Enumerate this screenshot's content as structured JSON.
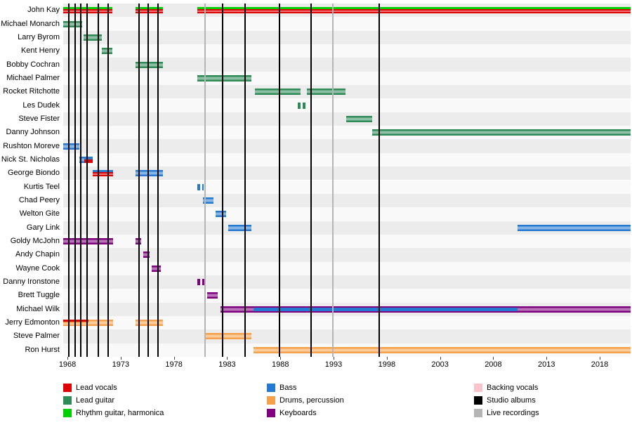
{
  "colors": {
    "lead_vocals": "#e00000",
    "lead_guitar": "#2e8b57",
    "rhythm_guitar": "#00cf00",
    "bass": "#2479d0",
    "drums": "#f5a14a",
    "keyboards": "#800080",
    "backing_vocals": "#f9c4cc",
    "studio_albums": "#000000",
    "live_recordings": "#b5b5b5",
    "row_band_dark": "#ececec",
    "row_band_light": "#f9f9f9"
  },
  "legend": {
    "items": [
      {
        "label": "Lead vocals",
        "color_key": "lead_vocals"
      },
      {
        "label": "Lead guitar",
        "color_key": "lead_guitar"
      },
      {
        "label": "Rhythm guitar, harmonica",
        "color_key": "rhythm_guitar"
      },
      {
        "label": "Bass",
        "color_key": "bass"
      },
      {
        "label": "Drums, percussion",
        "color_key": "drums"
      },
      {
        "label": "Keyboards",
        "color_key": "keyboards"
      },
      {
        "label": "Backing vocals",
        "color_key": "backing_vocals"
      },
      {
        "label": "Studio albums",
        "color_key": "studio_albums"
      },
      {
        "label": "Live recordings",
        "color_key": "live_recordings"
      }
    ]
  },
  "chart_data": {
    "type": "timeline",
    "x_axis": {
      "min": 1967.6,
      "max": 2020.9,
      "ticks": [
        1968,
        1973,
        1978,
        1983,
        1988,
        1993,
        1998,
        2003,
        2008,
        2013,
        2018
      ]
    },
    "rows": [
      {
        "name": "John Kay",
        "segments": [
          {
            "start": 1967.6,
            "end": 1972.2,
            "roles": [
              "rhythm_guitar",
              "lead_vocals",
              "lead_vocals"
            ]
          },
          {
            "start": 1974.4,
            "end": 1977.0,
            "roles": [
              "rhythm_guitar",
              "lead_vocals",
              "lead_vocals"
            ]
          },
          {
            "start": 1980.2,
            "end": 2020.9,
            "roles": [
              "rhythm_guitar",
              "lead_vocals",
              "lead_vocals"
            ]
          }
        ]
      },
      {
        "name": "Michael Monarch",
        "segments": [
          {
            "start": 1967.6,
            "end": 1969.4,
            "roles": [
              "lead_guitar"
            ]
          }
        ]
      },
      {
        "name": "Larry Byrom",
        "segments": [
          {
            "start": 1969.5,
            "end": 1971.2,
            "roles": [
              "lead_guitar"
            ]
          }
        ]
      },
      {
        "name": "Kent Henry",
        "segments": [
          {
            "start": 1971.2,
            "end": 1972.2,
            "roles": [
              "lead_guitar"
            ]
          }
        ]
      },
      {
        "name": "Bobby Cochran",
        "segments": [
          {
            "start": 1974.4,
            "end": 1977.0,
            "roles": [
              "lead_guitar"
            ]
          }
        ]
      },
      {
        "name": "Michael Palmer",
        "segments": [
          {
            "start": 1980.2,
            "end": 1985.3,
            "roles": [
              "lead_guitar"
            ]
          }
        ]
      },
      {
        "name": "Rocket Ritchotte",
        "segments": [
          {
            "start": 1985.6,
            "end": 1989.9,
            "roles": [
              "lead_guitar"
            ]
          },
          {
            "start": 1990.5,
            "end": 1994.1,
            "roles": [
              "lead_guitar"
            ]
          }
        ]
      },
      {
        "name": "Les Dudek",
        "segments": [
          {
            "start": 1989.6,
            "end": 1990.4,
            "roles": [
              "lead_guitar"
            ],
            "dashed": true
          }
        ]
      },
      {
        "name": "Steve Fister",
        "segments": [
          {
            "start": 1994.2,
            "end": 1996.6,
            "roles": [
              "lead_guitar"
            ]
          }
        ]
      },
      {
        "name": "Danny Johnson",
        "segments": [
          {
            "start": 1996.6,
            "end": 2020.9,
            "roles": [
              "lead_guitar"
            ]
          }
        ]
      },
      {
        "name": "Rushton Moreve",
        "segments": [
          {
            "start": 1967.6,
            "end": 1969.1,
            "roles": [
              "bass"
            ]
          }
        ]
      },
      {
        "name": "Nick St. Nicholas",
        "segments": [
          {
            "start": 1969.1,
            "end": 1969.6,
            "roles": [
              "bass"
            ]
          },
          {
            "start": 1969.6,
            "end": 1970.4,
            "roles": [
              "bass",
              "lead_vocals"
            ]
          }
        ]
      },
      {
        "name": "George Biondo",
        "segments": [
          {
            "start": 1970.4,
            "end": 1972.3,
            "roles": [
              "bass",
              "lead_vocals",
              "lead_vocals"
            ]
          },
          {
            "start": 1974.4,
            "end": 1977.0,
            "roles": [
              "bass"
            ]
          }
        ]
      },
      {
        "name": "Kurtis Teel",
        "segments": [
          {
            "start": 1980.2,
            "end": 1980.8,
            "roles": [
              "bass"
            ],
            "dashed": true
          }
        ]
      },
      {
        "name": "Chad Peery",
        "segments": [
          {
            "start": 1980.7,
            "end": 1981.7,
            "roles": [
              "bass"
            ]
          }
        ]
      },
      {
        "name": "Welton Gite",
        "segments": [
          {
            "start": 1981.9,
            "end": 1982.9,
            "roles": [
              "bass"
            ]
          }
        ]
      },
      {
        "name": "Gary Link",
        "segments": [
          {
            "start": 1983.1,
            "end": 1985.3,
            "roles": [
              "bass"
            ]
          },
          {
            "start": 2010.3,
            "end": 2020.9,
            "roles": [
              "bass"
            ]
          }
        ]
      },
      {
        "name": "Goldy McJohn",
        "segments": [
          {
            "start": 1967.6,
            "end": 1972.3,
            "roles": [
              "keyboards"
            ]
          },
          {
            "start": 1974.4,
            "end": 1974.9,
            "roles": [
              "keyboards"
            ]
          }
        ]
      },
      {
        "name": "Andy Chapin",
        "segments": [
          {
            "start": 1975.1,
            "end": 1975.7,
            "roles": [
              "keyboards"
            ]
          }
        ]
      },
      {
        "name": "Wayne Cook",
        "segments": [
          {
            "start": 1975.9,
            "end": 1976.8,
            "roles": [
              "keyboards"
            ]
          }
        ]
      },
      {
        "name": "Danny Ironstone",
        "segments": [
          {
            "start": 1980.2,
            "end": 1980.9,
            "roles": [
              "keyboards"
            ],
            "dashed": true
          }
        ]
      },
      {
        "name": "Brett Tuggle",
        "segments": [
          {
            "start": 1981.1,
            "end": 1982.1,
            "roles": [
              "keyboards"
            ]
          }
        ]
      },
      {
        "name": "Michael Wilk",
        "segments": [
          {
            "start": 1982.4,
            "end": 1985.5,
            "roles": [
              "keyboards"
            ]
          },
          {
            "start": 1985.5,
            "end": 2010.3,
            "roles": [
              "keyboards",
              "bass",
              "bass",
              "keyboards"
            ]
          },
          {
            "start": 2010.3,
            "end": 2020.9,
            "roles": [
              "keyboards"
            ]
          }
        ]
      },
      {
        "name": "Jerry Edmonton",
        "segments": [
          {
            "start": 1967.6,
            "end": 1970.0,
            "roles": [
              "lead_vocals",
              "drums",
              "drums"
            ]
          },
          {
            "start": 1970.0,
            "end": 1972.3,
            "roles": [
              "drums"
            ]
          },
          {
            "start": 1974.4,
            "end": 1977.0,
            "roles": [
              "drums"
            ]
          }
        ]
      },
      {
        "name": "Steve Palmer",
        "segments": [
          {
            "start": 1980.9,
            "end": 1985.3,
            "roles": [
              "drums"
            ]
          }
        ]
      },
      {
        "name": "Ron Hurst",
        "segments": [
          {
            "start": 1985.5,
            "end": 2020.9,
            "roles": [
              "drums"
            ]
          }
        ]
      }
    ],
    "events": {
      "studio_albums": [
        1968.1,
        1968.75,
        1969.25,
        1969.85,
        1970.9,
        1971.85,
        1974.7,
        1975.6,
        1976.5,
        1982.6,
        1984.7,
        1987.9,
        1990.9,
        1997.3
      ],
      "live_recordings": [
        1980.9,
        1992.9
      ]
    }
  }
}
